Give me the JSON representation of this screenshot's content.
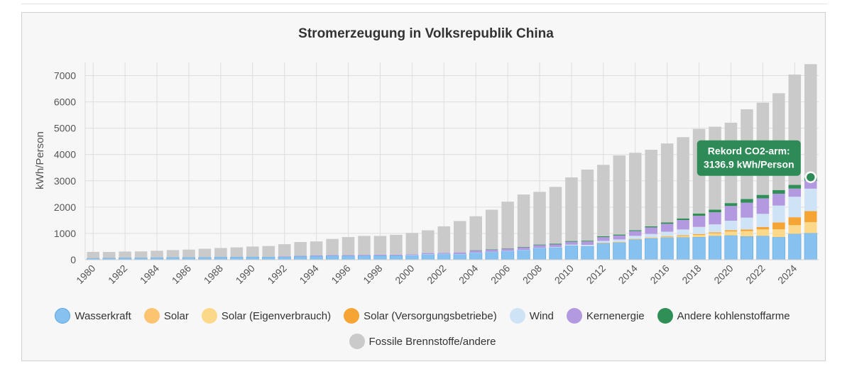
{
  "chart_data": {
    "type": "bar",
    "stacked": true,
    "title": "Stromerzeugung in Volksrepublik China",
    "xlabel": "",
    "ylabel": "kWh/Person",
    "ylim": [
      0,
      7500
    ],
    "yticks": [
      0,
      1000,
      2000,
      3000,
      4000,
      5000,
      6000,
      7000
    ],
    "grid": true,
    "legend_position": "bottom",
    "categories": [
      1980,
      1981,
      1982,
      1983,
      1984,
      1985,
      1986,
      1987,
      1988,
      1989,
      1990,
      1991,
      1992,
      1993,
      1994,
      1995,
      1996,
      1997,
      1998,
      1999,
      2000,
      2001,
      2002,
      2003,
      2004,
      2005,
      2006,
      2007,
      2008,
      2009,
      2010,
      2011,
      2012,
      2013,
      2014,
      2015,
      2016,
      2017,
      2018,
      2019,
      2020,
      2021,
      2022,
      2023,
      2024,
      2025
    ],
    "x_tick_labels": [
      "1980",
      "1982",
      "1984",
      "1986",
      "1988",
      "1990",
      "1992",
      "1994",
      "1996",
      "1998",
      "2000",
      "2002",
      "2004",
      "2006",
      "2008",
      "2010",
      "2012",
      "2014",
      "2016",
      "2018",
      "2020",
      "2022",
      "2024"
    ],
    "series": [
      {
        "name": "Wasserkraft",
        "color": "#86c1ef",
        "values": [
          58,
          65,
          74,
          73,
          80,
          88,
          88,
          92,
          101,
          106,
          111,
          109,
          112,
          131,
          140,
          152,
          150,
          155,
          163,
          163,
          175,
          213,
          225,
          219,
          273,
          303,
          333,
          371,
          445,
          461,
          535,
          513,
          641,
          662,
          771,
          813,
          844,
          850,
          863,
          904,
          924,
          890,
          905,
          860,
          985,
          1011
        ]
      },
      {
        "name": "Solar",
        "color": "#fcc470",
        "values": [
          0,
          0,
          0,
          0,
          0,
          0,
          0,
          0,
          0,
          0,
          0,
          0,
          0,
          0,
          0,
          0,
          0,
          0,
          0,
          0,
          0,
          0,
          0,
          0,
          0,
          0,
          0,
          0,
          0,
          0,
          0,
          0,
          0,
          0,
          0,
          0,
          0,
          0,
          0,
          0,
          0,
          0,
          0,
          0,
          0,
          0
        ]
      },
      {
        "name": "Solar (Eigenverbrauch)",
        "color": "#fcd98a",
        "values": [
          0,
          0,
          0,
          0,
          0,
          0,
          0,
          0,
          0,
          0,
          0,
          0,
          0,
          0,
          0,
          0,
          0,
          0,
          0,
          0,
          0,
          0,
          0,
          0,
          0,
          0,
          0,
          0,
          0,
          0,
          0,
          0,
          3,
          4,
          10,
          15,
          30,
          50,
          80,
          100,
          150,
          200,
          250,
          300,
          330,
          420
        ]
      },
      {
        "name": "Solar (Versorgungsbetriebe)",
        "color": "#f6a535",
        "values": [
          0,
          0,
          0,
          0,
          0,
          0,
          0,
          0,
          0,
          0,
          0,
          0,
          0,
          0,
          0,
          0,
          0,
          0,
          0,
          0,
          0,
          0,
          0,
          0,
          0,
          0,
          0,
          0,
          0,
          0,
          0,
          0,
          1,
          5,
          12,
          16,
          22,
          30,
          35,
          40,
          50,
          60,
          90,
          260,
          300,
          420
        ]
      },
      {
        "name": "Wind",
        "color": "#cfe3f6",
        "values": [
          0,
          0,
          0,
          0,
          0,
          0,
          0,
          0,
          0,
          0,
          0,
          0,
          0,
          0,
          0,
          0,
          0,
          0,
          0,
          0,
          1,
          1,
          1,
          1,
          2,
          2,
          3,
          4,
          10,
          20,
          37,
          52,
          71,
          100,
          115,
          135,
          170,
          220,
          270,
          300,
          360,
          450,
          500,
          640,
          780,
          850
        ]
      },
      {
        "name": "Kernenergie",
        "color": "#b39ae0",
        "values": [
          0,
          0,
          0,
          0,
          0,
          0,
          0,
          0,
          0,
          0,
          0,
          0,
          10,
          20,
          29,
          28,
          28,
          30,
          30,
          30,
          35,
          40,
          40,
          60,
          80,
          80,
          84,
          96,
          100,
          100,
          110,
          130,
          140,
          150,
          180,
          250,
          300,
          360,
          420,
          460,
          560,
          570,
          590,
          450,
          310,
          305
        ]
      },
      {
        "name": "Andere kohlenstoffarme",
        "color": "#2f8f57",
        "values": [
          0,
          0,
          0,
          0,
          0,
          0,
          0,
          0,
          0,
          0,
          0,
          0,
          0,
          0,
          0,
          0,
          0,
          0,
          0,
          0,
          0,
          0,
          0,
          0,
          5,
          5,
          10,
          20,
          22,
          30,
          30,
          30,
          35,
          35,
          35,
          40,
          50,
          60,
          90,
          100,
          110,
          140,
          130,
          140,
          140,
          130
        ]
      },
      {
        "name": "Fossile Brennstoffe/andere",
        "color": "#cacaca",
        "values": [
          240,
          232,
          238,
          245,
          262,
          280,
          298,
          326,
          346,
          364,
          392,
          413,
          469,
          522,
          527,
          611,
          684,
          721,
          712,
          755,
          809,
          865,
          1004,
          1192,
          1292,
          1512,
          1777,
          1988,
          2003,
          2159,
          2418,
          2702,
          2717,
          3009,
          2943,
          2911,
          3005,
          3090,
          3215,
          3154,
          3056,
          3410,
          3505,
          3680,
          4195,
          4300
        ]
      }
    ],
    "annotation": {
      "title": "Rekord CO2-arm:",
      "text": "3136.9 kWh/Person",
      "x": 2025,
      "y": 3136.9,
      "color": "#2e8b57"
    }
  }
}
